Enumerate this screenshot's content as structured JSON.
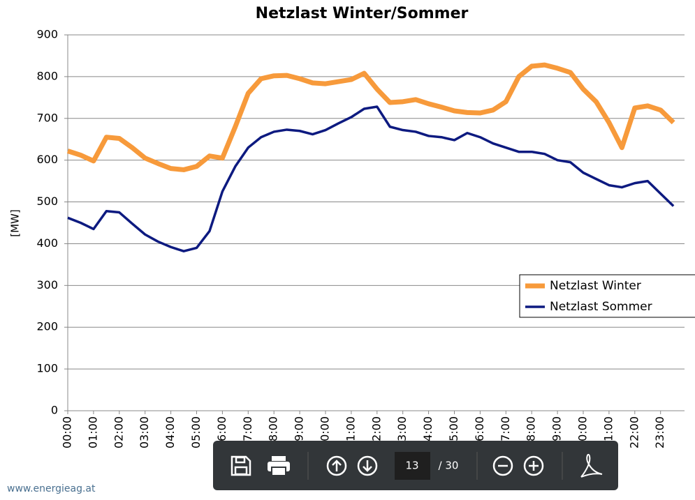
{
  "chart_data": {
    "type": "line",
    "title": "Netzlast Winter/Sommer",
    "y_label": "[MW]",
    "categories": [
      "00:00",
      null,
      "01:00",
      null,
      "02:00",
      null,
      "03:00",
      null,
      "04:00",
      null,
      "05:00",
      null,
      "06:00",
      null,
      "07:00",
      null,
      "08:00",
      null,
      "09:00",
      null,
      "10:00",
      null,
      "11:00",
      null,
      "12:00",
      null,
      "13:00",
      null,
      "14:00",
      null,
      "15:00",
      null,
      "16:00",
      null,
      "17:00",
      null,
      "18:00",
      null,
      "19:00",
      null,
      "20:00",
      null,
      "21:00",
      null,
      "22:00",
      null,
      "23:00",
      null
    ],
    "series": [
      {
        "name": "Netzlast Winter",
        "color": "#f79a3b",
        "values": [
          622,
          612,
          598,
          655,
          652,
          630,
          605,
          592,
          580,
          577,
          585,
          610,
          605,
          680,
          760,
          795,
          802,
          803,
          795,
          785,
          783,
          788,
          793,
          808,
          770,
          738,
          740,
          745,
          735,
          727,
          718,
          714,
          713,
          720,
          740,
          800,
          825,
          828,
          820,
          810,
          770,
          740,
          690,
          630,
          725,
          730,
          720,
          690
        ]
      },
      {
        "name": "Netzlast Sommer",
        "color": "#0d1a80",
        "values": [
          462,
          450,
          435,
          478,
          475,
          448,
          422,
          405,
          392,
          382,
          390,
          430,
          525,
          585,
          630,
          655,
          668,
          673,
          670,
          662,
          672,
          688,
          703,
          723,
          728,
          680,
          672,
          668,
          658,
          655,
          648,
          665,
          655,
          640,
          630,
          620,
          620,
          615,
          600,
          595,
          570,
          555,
          540,
          535,
          545,
          550,
          520,
          490
        ]
      }
    ],
    "ylim": [
      0,
      900
    ],
    "yticks": [
      0,
      100,
      200,
      300,
      400,
      500,
      600,
      700,
      800,
      900
    ],
    "grid": true,
    "legend": "right"
  },
  "toolbar": {
    "page": "13",
    "total": "/ 30"
  },
  "footer": "www.energieag.at"
}
